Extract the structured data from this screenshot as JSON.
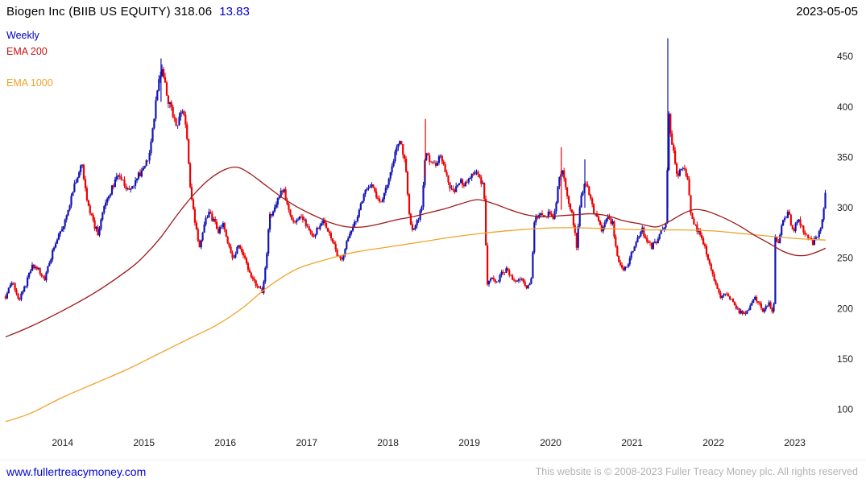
{
  "header": {
    "title": "Biogen Inc (BIIB US EQUITY) 318.06",
    "change": "13.83",
    "date": "2023-05-05"
  },
  "legend": {
    "weekly": "Weekly",
    "ema200": "EMA 200",
    "ema1000": "EMA 1000"
  },
  "footer": {
    "link": "www.fullertreacymoney.com",
    "copyright": "This website is © 2008-2023 Fuller Treacy Money plc. All rights reserved"
  },
  "chart_data": {
    "type": "candlestick",
    "title": "Biogen Inc (BIIB US EQUITY)",
    "timeframe": "Weekly",
    "last_price": 318.06,
    "change": 13.83,
    "legend_position": "top-left",
    "y_axis_side": "right",
    "grid": false,
    "x_ticks": [
      2014,
      2015,
      2016,
      2017,
      2018,
      2019,
      2020,
      2021,
      2022,
      2023
    ],
    "y_ticks": [
      100,
      150,
      200,
      250,
      300,
      350,
      400,
      450
    ],
    "x_range": [
      2013.28,
      2023.45
    ],
    "y_range": [
      75,
      482
    ],
    "up_color": "#1414b4",
    "down_color": "#ee0000",
    "weekly_close_anchors": [
      [
        2013.3,
        212
      ],
      [
        2013.38,
        228
      ],
      [
        2013.46,
        208
      ],
      [
        2013.54,
        222
      ],
      [
        2013.62,
        242
      ],
      [
        2013.7,
        238
      ],
      [
        2013.78,
        230
      ],
      [
        2013.86,
        252
      ],
      [
        2013.94,
        272
      ],
      [
        2014.02,
        285
      ],
      [
        2014.1,
        308
      ],
      [
        2014.18,
        332
      ],
      [
        2014.24,
        344
      ],
      [
        2014.3,
        308
      ],
      [
        2014.38,
        284
      ],
      [
        2014.44,
        274
      ],
      [
        2014.52,
        305
      ],
      [
        2014.6,
        318
      ],
      [
        2014.68,
        334
      ],
      [
        2014.76,
        322
      ],
      [
        2014.84,
        316
      ],
      [
        2014.92,
        330
      ],
      [
        2015.0,
        340
      ],
      [
        2015.06,
        352
      ],
      [
        2015.12,
        388
      ],
      [
        2015.18,
        425
      ],
      [
        2015.22,
        442
      ],
      [
        2015.28,
        410
      ],
      [
        2015.34,
        396
      ],
      [
        2015.4,
        380
      ],
      [
        2015.46,
        398
      ],
      [
        2015.52,
        383
      ],
      [
        2015.56,
        328
      ],
      [
        2015.62,
        290
      ],
      [
        2015.68,
        258
      ],
      [
        2015.74,
        286
      ],
      [
        2015.8,
        294
      ],
      [
        2015.86,
        286
      ],
      [
        2015.92,
        276
      ],
      [
        2015.98,
        286
      ],
      [
        2016.04,
        262
      ],
      [
        2016.1,
        250
      ],
      [
        2016.16,
        262
      ],
      [
        2016.22,
        254
      ],
      [
        2016.28,
        238
      ],
      [
        2016.34,
        228
      ],
      [
        2016.4,
        220
      ],
      [
        2016.46,
        217
      ],
      [
        2016.5,
        244
      ],
      [
        2016.54,
        290
      ],
      [
        2016.6,
        299
      ],
      [
        2016.66,
        312
      ],
      [
        2016.72,
        317
      ],
      [
        2016.78,
        297
      ],
      [
        2016.84,
        284
      ],
      [
        2016.9,
        291
      ],
      [
        2016.96,
        287
      ],
      [
        2017.02,
        281
      ],
      [
        2017.08,
        271
      ],
      [
        2017.14,
        281
      ],
      [
        2017.2,
        289
      ],
      [
        2017.26,
        277
      ],
      [
        2017.32,
        267
      ],
      [
        2017.38,
        251
      ],
      [
        2017.44,
        247
      ],
      [
        2017.5,
        267
      ],
      [
        2017.56,
        281
      ],
      [
        2017.62,
        291
      ],
      [
        2017.68,
        309
      ],
      [
        2017.74,
        317
      ],
      [
        2017.8,
        321
      ],
      [
        2017.86,
        311
      ],
      [
        2017.92,
        307
      ],
      [
        2017.98,
        321
      ],
      [
        2018.04,
        339
      ],
      [
        2018.1,
        357
      ],
      [
        2018.16,
        367
      ],
      [
        2018.22,
        339
      ],
      [
        2018.26,
        294
      ],
      [
        2018.3,
        275
      ],
      [
        2018.36,
        287
      ],
      [
        2018.42,
        301
      ],
      [
        2018.46,
        357
      ],
      [
        2018.52,
        347
      ],
      [
        2018.58,
        341
      ],
      [
        2018.64,
        354
      ],
      [
        2018.7,
        337
      ],
      [
        2018.76,
        321
      ],
      [
        2018.82,
        317
      ],
      [
        2018.88,
        327
      ],
      [
        2018.94,
        321
      ],
      [
        2019.0,
        329
      ],
      [
        2019.06,
        337
      ],
      [
        2019.12,
        331
      ],
      [
        2019.18,
        319
      ],
      [
        2019.22,
        226
      ],
      [
        2019.28,
        231
      ],
      [
        2019.34,
        227
      ],
      [
        2019.4,
        235
      ],
      [
        2019.46,
        239
      ],
      [
        2019.52,
        231
      ],
      [
        2019.58,
        227
      ],
      [
        2019.64,
        231
      ],
      [
        2019.7,
        221
      ],
      [
        2019.76,
        227
      ],
      [
        2019.8,
        287
      ],
      [
        2019.86,
        294
      ],
      [
        2019.92,
        291
      ],
      [
        2019.98,
        295
      ],
      [
        2020.04,
        287
      ],
      [
        2020.1,
        331
      ],
      [
        2020.14,
        339
      ],
      [
        2020.2,
        311
      ],
      [
        2020.26,
        297
      ],
      [
        2020.32,
        261
      ],
      [
        2020.36,
        304
      ],
      [
        2020.42,
        329
      ],
      [
        2020.46,
        317
      ],
      [
        2020.52,
        299
      ],
      [
        2020.58,
        287
      ],
      [
        2020.64,
        277
      ],
      [
        2020.7,
        291
      ],
      [
        2020.76,
        285
      ],
      [
        2020.82,
        251
      ],
      [
        2020.88,
        239
      ],
      [
        2020.94,
        241
      ],
      [
        2021.0,
        257
      ],
      [
        2021.06,
        271
      ],
      [
        2021.12,
        279
      ],
      [
        2021.18,
        267
      ],
      [
        2021.24,
        261
      ],
      [
        2021.3,
        267
      ],
      [
        2021.36,
        277
      ],
      [
        2021.42,
        283
      ],
      [
        2021.45,
        394
      ],
      [
        2021.48,
        371
      ],
      [
        2021.52,
        351
      ],
      [
        2021.56,
        329
      ],
      [
        2021.62,
        341
      ],
      [
        2021.68,
        331
      ],
      [
        2021.72,
        297
      ],
      [
        2021.78,
        281
      ],
      [
        2021.84,
        271
      ],
      [
        2021.9,
        261
      ],
      [
        2021.96,
        241
      ],
      [
        2022.02,
        227
      ],
      [
        2022.08,
        211
      ],
      [
        2022.14,
        217
      ],
      [
        2022.2,
        211
      ],
      [
        2022.26,
        204
      ],
      [
        2022.32,
        197
      ],
      [
        2022.38,
        195
      ],
      [
        2022.44,
        201
      ],
      [
        2022.5,
        211
      ],
      [
        2022.56,
        205
      ],
      [
        2022.62,
        197
      ],
      [
        2022.68,
        207
      ],
      [
        2022.72,
        197
      ],
      [
        2022.74,
        201
      ],
      [
        2022.76,
        271
      ],
      [
        2022.8,
        267
      ],
      [
        2022.86,
        287
      ],
      [
        2022.92,
        295
      ],
      [
        2022.98,
        277
      ],
      [
        2023.04,
        287
      ],
      [
        2023.1,
        279
      ],
      [
        2023.16,
        271
      ],
      [
        2023.22,
        265
      ],
      [
        2023.28,
        271
      ],
      [
        2023.32,
        281
      ],
      [
        2023.36,
        300
      ],
      [
        2023.38,
        318
      ]
    ],
    "spike_wicks": [
      [
        2015.21,
        448,
        405,
        "up"
      ],
      [
        2018.46,
        388,
        330,
        "down"
      ],
      [
        2020.13,
        360,
        298,
        "down"
      ],
      [
        2020.42,
        348,
        300,
        "up"
      ],
      [
        2021.44,
        468,
        300,
        "up"
      ]
    ],
    "series": [
      {
        "name": "EMA 200",
        "color": "#a01818",
        "points": [
          [
            2013.3,
            172
          ],
          [
            2013.6,
            182
          ],
          [
            2014.0,
            198
          ],
          [
            2014.4,
            216
          ],
          [
            2014.8,
            238
          ],
          [
            2015.0,
            252
          ],
          [
            2015.2,
            270
          ],
          [
            2015.4,
            292
          ],
          [
            2015.6,
            312
          ],
          [
            2015.8,
            328
          ],
          [
            2016.0,
            338
          ],
          [
            2016.15,
            340
          ],
          [
            2016.3,
            334
          ],
          [
            2016.5,
            322
          ],
          [
            2016.7,
            310
          ],
          [
            2016.9,
            300
          ],
          [
            2017.1,
            292
          ],
          [
            2017.3,
            285
          ],
          [
            2017.5,
            281
          ],
          [
            2017.7,
            281
          ],
          [
            2017.9,
            284
          ],
          [
            2018.1,
            288
          ],
          [
            2018.3,
            291
          ],
          [
            2018.5,
            295
          ],
          [
            2018.7,
            299
          ],
          [
            2018.9,
            304
          ],
          [
            2019.1,
            308
          ],
          [
            2019.3,
            304
          ],
          [
            2019.5,
            298
          ],
          [
            2019.7,
            293
          ],
          [
            2019.9,
            291
          ],
          [
            2020.1,
            292
          ],
          [
            2020.3,
            293
          ],
          [
            2020.5,
            294
          ],
          [
            2020.7,
            292
          ],
          [
            2020.9,
            287
          ],
          [
            2021.1,
            284
          ],
          [
            2021.3,
            281
          ],
          [
            2021.45,
            286
          ],
          [
            2021.6,
            293
          ],
          [
            2021.75,
            298
          ],
          [
            2021.9,
            297
          ],
          [
            2022.1,
            291
          ],
          [
            2022.3,
            283
          ],
          [
            2022.5,
            273
          ],
          [
            2022.7,
            264
          ],
          [
            2022.85,
            257
          ],
          [
            2023.0,
            253
          ],
          [
            2023.15,
            253
          ],
          [
            2023.3,
            257
          ],
          [
            2023.38,
            260
          ]
        ]
      },
      {
        "name": "EMA 1000",
        "color": "#f2a32a",
        "points": [
          [
            2013.3,
            88
          ],
          [
            2013.6,
            96
          ],
          [
            2014.0,
            112
          ],
          [
            2014.4,
            126
          ],
          [
            2014.8,
            140
          ],
          [
            2015.2,
            156
          ],
          [
            2015.6,
            172
          ],
          [
            2015.9,
            184
          ],
          [
            2016.2,
            200
          ],
          [
            2016.5,
            220
          ],
          [
            2016.8,
            236
          ],
          [
            2017.0,
            243
          ],
          [
            2017.3,
            250
          ],
          [
            2017.6,
            256
          ],
          [
            2018.0,
            261
          ],
          [
            2018.4,
            266
          ],
          [
            2018.8,
            271
          ],
          [
            2019.2,
            275
          ],
          [
            2019.6,
            278
          ],
          [
            2020.0,
            280
          ],
          [
            2020.4,
            280
          ],
          [
            2020.8,
            279
          ],
          [
            2021.2,
            278
          ],
          [
            2021.6,
            278
          ],
          [
            2022.0,
            277
          ],
          [
            2022.4,
            274
          ],
          [
            2022.8,
            271
          ],
          [
            2023.1,
            269
          ],
          [
            2023.38,
            268
          ]
        ]
      }
    ]
  }
}
